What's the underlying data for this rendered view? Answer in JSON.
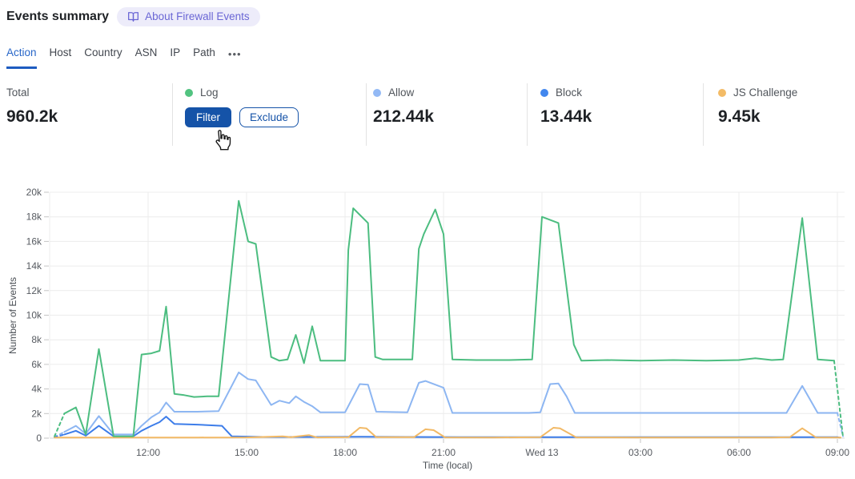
{
  "header": {
    "title": "Events summary",
    "about_badge": "About Firewall Events"
  },
  "tabs": {
    "items": [
      {
        "label": "Action",
        "active": true
      },
      {
        "label": "Host",
        "active": false
      },
      {
        "label": "Country",
        "active": false
      },
      {
        "label": "ASN",
        "active": false
      },
      {
        "label": "IP",
        "active": false
      },
      {
        "label": "Path",
        "active": false
      }
    ],
    "more_label": "•••"
  },
  "stats": {
    "cards": [
      {
        "label": "Total",
        "value": "960.2k"
      },
      {
        "label": "Log",
        "dot_color": "#52c380",
        "filter_label": "Filter",
        "exclude_label": "Exclude"
      },
      {
        "label": "Allow",
        "dot_color": "#93b9f5",
        "value": "212.44k"
      },
      {
        "label": "Block",
        "dot_color": "#4287ee",
        "value": "13.44k"
      },
      {
        "label": "JS Challenge",
        "dot_color": "#f3bb66",
        "value": "9.45k"
      }
    ]
  },
  "chart_data": {
    "type": "line",
    "xlabel": "Time (local)",
    "ylabel": "Number of Events",
    "values_unit": "thousands of events",
    "x_unit": "hours since Tue 00:00, local time (24 = Wed 13 00:00)",
    "xlim": [
      9.0,
      33.22
    ],
    "ylim": [
      0,
      20
    ],
    "grid": true,
    "y_ticks": [
      {
        "v": 0,
        "label": "0"
      },
      {
        "v": 2,
        "label": "2k"
      },
      {
        "v": 4,
        "label": "4k"
      },
      {
        "v": 6,
        "label": "6k"
      },
      {
        "v": 8,
        "label": "8k"
      },
      {
        "v": 10,
        "label": "10k"
      },
      {
        "v": 12,
        "label": "12k"
      },
      {
        "v": 14,
        "label": "14k"
      },
      {
        "v": 16,
        "label": "16k"
      },
      {
        "v": 18,
        "label": "18k"
      },
      {
        "v": 20,
        "label": "20k"
      }
    ],
    "x_ticks": [
      {
        "t": 12,
        "label": "12:00"
      },
      {
        "t": 15,
        "label": "15:00"
      },
      {
        "t": 18,
        "label": "18:00"
      },
      {
        "t": 21,
        "label": "21:00"
      },
      {
        "t": 24,
        "label": "Wed 13"
      },
      {
        "t": 27,
        "label": "03:00"
      },
      {
        "t": 30,
        "label": "06:00"
      },
      {
        "t": 33,
        "label": "09:00"
      }
    ],
    "series": [
      {
        "name": "Allow",
        "color": "#8db6f2",
        "start_dashed": true,
        "end_dashed": true,
        "points": [
          [
            9.15,
            0.1
          ],
          [
            9.45,
            0.5
          ],
          [
            9.8,
            1.0
          ],
          [
            10.1,
            0.35
          ],
          [
            10.5,
            1.8
          ],
          [
            10.95,
            0.3
          ],
          [
            11.55,
            0.3
          ],
          [
            11.8,
            1.0
          ],
          [
            12.1,
            1.7
          ],
          [
            12.35,
            2.1
          ],
          [
            12.55,
            2.9
          ],
          [
            12.8,
            2.15
          ],
          [
            13.5,
            2.15
          ],
          [
            14.15,
            2.2
          ],
          [
            14.76,
            5.35
          ],
          [
            15.05,
            4.8
          ],
          [
            15.28,
            4.7
          ],
          [
            15.75,
            2.7
          ],
          [
            16.0,
            3.05
          ],
          [
            16.3,
            2.85
          ],
          [
            16.5,
            3.4
          ],
          [
            16.75,
            2.95
          ],
          [
            17.0,
            2.6
          ],
          [
            17.25,
            2.1
          ],
          [
            18.0,
            2.1
          ],
          [
            18.45,
            4.4
          ],
          [
            18.7,
            4.35
          ],
          [
            18.95,
            2.15
          ],
          [
            19.9,
            2.1
          ],
          [
            20.25,
            4.5
          ],
          [
            20.45,
            4.65
          ],
          [
            21.0,
            4.1
          ],
          [
            21.27,
            2.05
          ],
          [
            22.5,
            2.05
          ],
          [
            23.6,
            2.05
          ],
          [
            23.95,
            2.1
          ],
          [
            24.25,
            4.4
          ],
          [
            24.5,
            4.45
          ],
          [
            24.75,
            3.4
          ],
          [
            25.0,
            2.05
          ],
          [
            26.5,
            2.05
          ],
          [
            28.0,
            2.05
          ],
          [
            30.0,
            2.05
          ],
          [
            31.45,
            2.05
          ],
          [
            31.93,
            4.25
          ],
          [
            32.4,
            2.05
          ],
          [
            33.0,
            2.05
          ],
          [
            33.17,
            0.15
          ]
        ]
      },
      {
        "name": "Block",
        "color": "#3d7de9",
        "start_dashed": true,
        "end_dashed": true,
        "points": [
          [
            9.15,
            0.08
          ],
          [
            9.45,
            0.3
          ],
          [
            9.8,
            0.6
          ],
          [
            10.1,
            0.2
          ],
          [
            10.5,
            1.0
          ],
          [
            10.95,
            0.15
          ],
          [
            11.55,
            0.15
          ],
          [
            11.8,
            0.6
          ],
          [
            12.1,
            1.0
          ],
          [
            12.35,
            1.3
          ],
          [
            12.55,
            1.75
          ],
          [
            12.8,
            1.15
          ],
          [
            13.5,
            1.1
          ],
          [
            14.25,
            1.0
          ],
          [
            14.55,
            0.15
          ],
          [
            15.5,
            0.1
          ],
          [
            17.0,
            0.1
          ],
          [
            18.5,
            0.12
          ],
          [
            20.0,
            0.1
          ],
          [
            21.5,
            0.08
          ],
          [
            24.0,
            0.08
          ],
          [
            26.0,
            0.08
          ],
          [
            28.0,
            0.08
          ],
          [
            30.0,
            0.08
          ],
          [
            32.0,
            0.08
          ],
          [
            33.0,
            0.08
          ],
          [
            33.17,
            0.0
          ]
        ]
      },
      {
        "name": "JS Challenge",
        "color": "#f2b965",
        "start_dashed": false,
        "end_dashed": false,
        "points": [
          [
            9.15,
            0.05
          ],
          [
            10.5,
            0.05
          ],
          [
            12.0,
            0.05
          ],
          [
            13.5,
            0.05
          ],
          [
            15.0,
            0.06
          ],
          [
            16.1,
            0.15
          ],
          [
            16.35,
            0.08
          ],
          [
            16.9,
            0.25
          ],
          [
            17.15,
            0.06
          ],
          [
            18.1,
            0.08
          ],
          [
            18.45,
            0.85
          ],
          [
            18.65,
            0.8
          ],
          [
            18.95,
            0.08
          ],
          [
            20.1,
            0.08
          ],
          [
            20.45,
            0.72
          ],
          [
            20.7,
            0.65
          ],
          [
            21.05,
            0.06
          ],
          [
            22.5,
            0.05
          ],
          [
            23.95,
            0.08
          ],
          [
            24.35,
            0.85
          ],
          [
            24.55,
            0.8
          ],
          [
            25.05,
            0.06
          ],
          [
            27.0,
            0.05
          ],
          [
            29.0,
            0.05
          ],
          [
            31.0,
            0.05
          ],
          [
            31.55,
            0.08
          ],
          [
            31.93,
            0.8
          ],
          [
            32.35,
            0.06
          ],
          [
            33.1,
            0.05
          ]
        ]
      },
      {
        "name": "Log",
        "color": "#4cbd80",
        "start_dashed": true,
        "end_dashed": true,
        "points": [
          [
            9.15,
            0.15
          ],
          [
            9.45,
            2.0
          ],
          [
            9.8,
            2.5
          ],
          [
            10.1,
            0.3
          ],
          [
            10.5,
            7.25
          ],
          [
            10.95,
            0.15
          ],
          [
            11.55,
            0.15
          ],
          [
            11.8,
            6.8
          ],
          [
            12.1,
            6.9
          ],
          [
            12.35,
            7.1
          ],
          [
            12.55,
            10.7
          ],
          [
            12.8,
            3.6
          ],
          [
            13.1,
            3.5
          ],
          [
            13.4,
            3.35
          ],
          [
            13.8,
            3.4
          ],
          [
            14.15,
            3.4
          ],
          [
            14.76,
            19.3
          ],
          [
            15.05,
            16.0
          ],
          [
            15.28,
            15.8
          ],
          [
            15.75,
            6.6
          ],
          [
            16.0,
            6.3
          ],
          [
            16.25,
            6.4
          ],
          [
            16.5,
            8.4
          ],
          [
            16.75,
            6.1
          ],
          [
            17.0,
            9.1
          ],
          [
            17.25,
            6.3
          ],
          [
            18.0,
            6.3
          ],
          [
            18.1,
            15.3
          ],
          [
            18.25,
            18.7
          ],
          [
            18.7,
            17.5
          ],
          [
            18.92,
            6.6
          ],
          [
            19.15,
            6.4
          ],
          [
            20.05,
            6.4
          ],
          [
            20.25,
            15.4
          ],
          [
            20.4,
            16.6
          ],
          [
            20.75,
            18.6
          ],
          [
            21.0,
            16.6
          ],
          [
            21.27,
            6.4
          ],
          [
            22.0,
            6.35
          ],
          [
            23.0,
            6.35
          ],
          [
            23.7,
            6.4
          ],
          [
            24.0,
            18.0
          ],
          [
            24.5,
            17.5
          ],
          [
            24.97,
            7.6
          ],
          [
            25.2,
            6.3
          ],
          [
            26.0,
            6.35
          ],
          [
            27.0,
            6.3
          ],
          [
            28.0,
            6.35
          ],
          [
            29.0,
            6.3
          ],
          [
            30.0,
            6.35
          ],
          [
            30.5,
            6.5
          ],
          [
            31.0,
            6.35
          ],
          [
            31.35,
            6.4
          ],
          [
            31.93,
            17.9
          ],
          [
            32.4,
            6.4
          ],
          [
            32.9,
            6.3
          ],
          [
            33.17,
            0.1
          ]
        ]
      }
    ]
  }
}
